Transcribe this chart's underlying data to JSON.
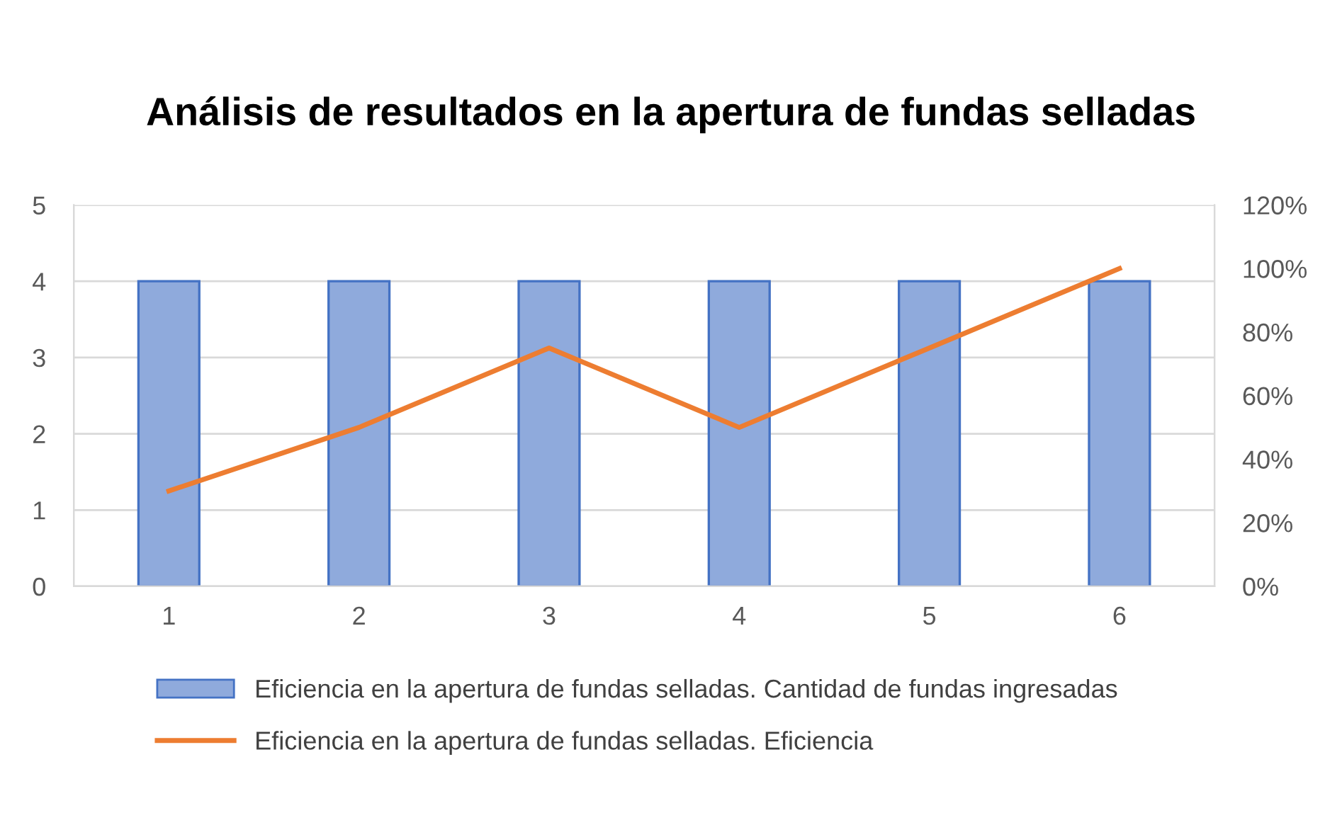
{
  "chart_data": {
    "type": "bar",
    "title": "Análisis de resultados en la apertura de fundas selladas",
    "categories": [
      "1",
      "2",
      "3",
      "4",
      "5",
      "6"
    ],
    "series": [
      {
        "name": "Eficiencia en la apertura de fundas selladas. Cantidad de fundas ingresadas",
        "color": "#8faadc",
        "values": [
          4,
          4,
          4,
          4,
          4,
          4
        ]
      },
      {
        "name": "Eficiencia en la apertura de fundas selladas. Eficiencia",
        "type": "line",
        "axis": "y2",
        "color": "#ed7d31",
        "values": [
          30,
          50,
          75,
          50,
          75,
          100
        ]
      }
    ],
    "ylim": [
      0,
      5
    ],
    "yticks": [
      0,
      1,
      2,
      3,
      4,
      5
    ],
    "y2lim": [
      0,
      120
    ],
    "y2ticks": [
      {
        "value": 0,
        "label": "0%"
      },
      {
        "value": 20,
        "label": "20%"
      },
      {
        "value": 40,
        "label": "40%"
      },
      {
        "value": 60,
        "label": "60%"
      },
      {
        "value": 80,
        "label": "80%"
      },
      {
        "value": 100,
        "label": "100%"
      },
      {
        "value": 120,
        "label": "120%"
      }
    ],
    "grid": "y",
    "legend": "bottom",
    "marker": "none",
    "line_style": "solid"
  }
}
